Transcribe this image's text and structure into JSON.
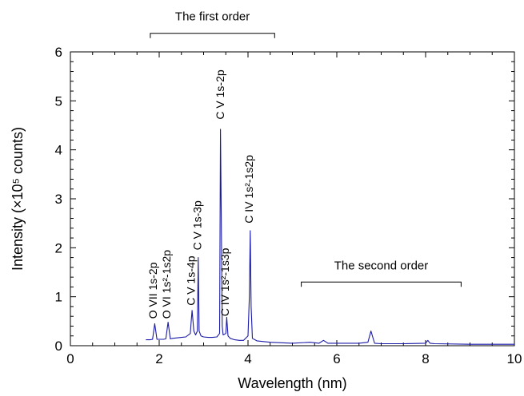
{
  "chart_data": {
    "type": "line",
    "xlabel": "Wavelength (nm)",
    "ylabel": "Intensity (×10⁵ counts)",
    "xlim": [
      0,
      10
    ],
    "ylim": [
      0,
      6
    ],
    "xticks": [
      0,
      2,
      4,
      6,
      8,
      10
    ],
    "xtick_labels": [
      "0",
      "2",
      "4",
      "6",
      "8",
      "10"
    ],
    "yticks": [
      0,
      1,
      2,
      3,
      4,
      5,
      6
    ],
    "ytick_labels": [
      "0",
      "1",
      "2",
      "3",
      "4",
      "5",
      "6"
    ],
    "grid": false,
    "line_color": "#1a1aa8",
    "series": [
      {
        "x": [
          1.7,
          1.8,
          1.85,
          1.9,
          1.95,
          2.0,
          2.1,
          2.15,
          2.2,
          2.25,
          2.3,
          2.4,
          2.5,
          2.6,
          2.7,
          2.72,
          2.74,
          2.78,
          2.82,
          2.86,
          2.88,
          2.9,
          2.94,
          3.0,
          3.1,
          3.2,
          3.3,
          3.36,
          3.38,
          3.42,
          3.44,
          3.5,
          3.52,
          3.55,
          3.6,
          3.7,
          3.8,
          3.9,
          4.0,
          4.03,
          4.05,
          4.07,
          4.1,
          4.2,
          4.5,
          5.0,
          5.4,
          5.6,
          5.7,
          5.8,
          6.0,
          6.5,
          6.7,
          6.77,
          6.85,
          7.0,
          7.5,
          8.0,
          8.05,
          8.1,
          8.2,
          9.0,
          10.0
        ],
        "y": [
          0.12,
          0.12,
          0.13,
          0.45,
          0.13,
          0.13,
          0.13,
          0.14,
          0.48,
          0.14,
          0.15,
          0.16,
          0.17,
          0.18,
          0.25,
          0.5,
          0.72,
          0.3,
          0.22,
          0.3,
          1.8,
          0.3,
          0.2,
          0.18,
          0.17,
          0.17,
          0.18,
          0.25,
          4.42,
          0.4,
          0.22,
          0.25,
          0.58,
          0.2,
          0.15,
          0.12,
          0.11,
          0.11,
          0.2,
          1.0,
          2.35,
          0.8,
          0.15,
          0.1,
          0.07,
          0.05,
          0.07,
          0.05,
          0.11,
          0.05,
          0.05,
          0.05,
          0.07,
          0.3,
          0.05,
          0.04,
          0.04,
          0.05,
          0.11,
          0.05,
          0.04,
          0.03,
          0.03
        ]
      }
    ],
    "annotations": [
      {
        "text": "O VII 1s-2p",
        "x": 1.95,
        "y": 0.55
      },
      {
        "text": "O VI 1s²-1s2p",
        "x": 2.25,
        "y": 0.55
      },
      {
        "text": "C V 1s-4p",
        "x": 2.8,
        "y": 0.82
      },
      {
        "text": "C V 1s-3p",
        "x": 2.95,
        "y": 1.95
      },
      {
        "text": "C V 1s-2p",
        "x": 3.46,
        "y": 4.62
      },
      {
        "text": "C IV 1s²-1s3p",
        "x": 3.57,
        "y": 0.6
      },
      {
        "text": "C IV 1s²-1s2p",
        "x": 4.11,
        "y": 2.5
      }
    ],
    "brackets": [
      {
        "text": "The first order",
        "x_start": 1.8,
        "x_end": 4.6,
        "y": 6.38
      },
      {
        "text": "The second order",
        "x_start": 5.2,
        "x_end": 8.8,
        "y": 1.3
      }
    ]
  }
}
